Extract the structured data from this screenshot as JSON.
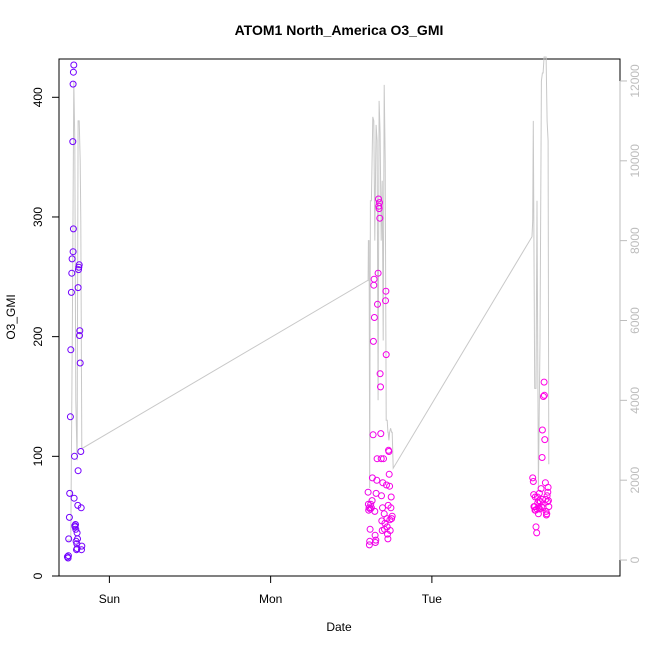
{
  "chart_data": {
    "type": "scatter",
    "title": "ATOM1 North_America O3_GMI",
    "xlabel": "Date",
    "ylabel": "O3_GMI",
    "x_axis": {
      "type": "date",
      "range_hours": [
        -15.0,
        152.0
      ],
      "ticks": [
        {
          "label": "Sun",
          "value": 0
        },
        {
          "label": "Mon",
          "value": 48
        },
        {
          "label": "Tue",
          "value": 96
        }
      ]
    },
    "y_axis": {
      "range": [
        0,
        432
      ],
      "ticks": [
        0,
        100,
        200,
        300,
        400
      ]
    },
    "y2_axis": {
      "description": "secondary axis for the altitude trace",
      "range": [
        -400,
        12550
      ],
      "ticks": [
        0,
        2000,
        4000,
        6000,
        8000,
        10000,
        12000
      ]
    },
    "colors": {
      "early": "#7000ff",
      "late": "#ff00e6",
      "altitude_line": "#c8c8c8"
    },
    "series": [
      {
        "type": "scatter",
        "points": [
          [
            -12.5,
            16
          ],
          [
            -12.3,
            15
          ],
          [
            -12.2,
            17
          ],
          [
            -12.1,
            31
          ],
          [
            -11.9,
            49
          ],
          [
            -11.8,
            69
          ],
          [
            -11.6,
            133
          ],
          [
            -11.5,
            189
          ],
          [
            -11.3,
            237
          ],
          [
            -11.2,
            253
          ],
          [
            -11.1,
            265
          ],
          [
            -10.8,
            271
          ],
          [
            -10.7,
            290
          ],
          [
            -10.9,
            363
          ],
          [
            -10.8,
            411
          ],
          [
            -10.7,
            421
          ],
          [
            -10.6,
            427
          ],
          [
            -10.5,
            65
          ],
          [
            -10.4,
            100
          ],
          [
            -10.3,
            42
          ],
          [
            -10.2,
            41
          ],
          [
            -10.1,
            43
          ],
          [
            -10.0,
            39
          ],
          [
            -9.9,
            29
          ],
          [
            -9.8,
            22
          ],
          [
            -9.7,
            27
          ],
          [
            -9.6,
            23
          ],
          [
            -9.6,
            36
          ],
          [
            -9.5,
            31
          ],
          [
            -9.4,
            59
          ],
          [
            -9.3,
            88
          ],
          [
            -9.3,
            241
          ],
          [
            -9.2,
            256
          ],
          [
            -9.1,
            258
          ],
          [
            -9.0,
            260
          ],
          [
            -8.9,
            201
          ],
          [
            -8.8,
            205
          ],
          [
            -8.7,
            178
          ],
          [
            -8.5,
            104
          ],
          [
            -8.4,
            57
          ],
          [
            -8.3,
            22
          ],
          [
            -8.2,
            25
          ],
          [
            77.0,
            70
          ],
          [
            77.1,
            60
          ],
          [
            77.2,
            55
          ],
          [
            77.3,
            57
          ],
          [
            77.4,
            26
          ],
          [
            77.5,
            29
          ],
          [
            77.6,
            39
          ],
          [
            77.7,
            56
          ],
          [
            77.8,
            60
          ],
          [
            78.0,
            57
          ],
          [
            78.2,
            63
          ],
          [
            78.3,
            82
          ],
          [
            78.5,
            118
          ],
          [
            78.6,
            196
          ],
          [
            78.7,
            243
          ],
          [
            78.8,
            248
          ],
          [
            78.9,
            216
          ],
          [
            79.0,
            54
          ],
          [
            79.1,
            34
          ],
          [
            79.2,
            28
          ],
          [
            79.3,
            30
          ],
          [
            79.4,
            69
          ],
          [
            79.6,
            80
          ],
          [
            79.7,
            98
          ],
          [
            79.8,
            227
          ],
          [
            80.0,
            253
          ],
          [
            80.1,
            315
          ],
          [
            80.2,
            309
          ],
          [
            80.3,
            307
          ],
          [
            80.4,
            312
          ],
          [
            80.5,
            299
          ],
          [
            80.6,
            169
          ],
          [
            80.7,
            158
          ],
          [
            80.8,
            119
          ],
          [
            80.9,
            98
          ],
          [
            81.0,
            67
          ],
          [
            81.1,
            46
          ],
          [
            81.2,
            38
          ],
          [
            81.3,
            57
          ],
          [
            81.4,
            78
          ],
          [
            81.6,
            98
          ],
          [
            81.8,
            52
          ],
          [
            81.9,
            39
          ],
          [
            82.0,
            44
          ],
          [
            82.2,
            230
          ],
          [
            82.3,
            238
          ],
          [
            82.4,
            185
          ],
          [
            82.5,
            76
          ],
          [
            82.6,
            48
          ],
          [
            82.7,
            41
          ],
          [
            82.8,
            35
          ],
          [
            82.9,
            31
          ],
          [
            83.0,
            59
          ],
          [
            83.1,
            105
          ],
          [
            83.2,
            104
          ],
          [
            83.3,
            85
          ],
          [
            83.4,
            75
          ],
          [
            83.5,
            47
          ],
          [
            83.6,
            38
          ],
          [
            83.8,
            57
          ],
          [
            83.9,
            66
          ],
          [
            84.0,
            48
          ],
          [
            84.2,
            50
          ],
          [
            126.0,
            82
          ],
          [
            126.2,
            79
          ],
          [
            126.3,
            68
          ],
          [
            126.4,
            58
          ],
          [
            126.6,
            58
          ],
          [
            126.7,
            55
          ],
          [
            126.8,
            66
          ],
          [
            126.9,
            55
          ],
          [
            127.0,
            41
          ],
          [
            127.2,
            36
          ],
          [
            127.3,
            56
          ],
          [
            127.4,
            66
          ],
          [
            127.5,
            61
          ],
          [
            127.7,
            52
          ],
          [
            127.8,
            57
          ],
          [
            127.9,
            63
          ],
          [
            128.0,
            69
          ],
          [
            128.1,
            56
          ],
          [
            128.3,
            62
          ],
          [
            128.5,
            73
          ],
          [
            128.6,
            58
          ],
          [
            128.8,
            99
          ],
          [
            128.9,
            122
          ],
          [
            129.0,
            64
          ],
          [
            129.1,
            57
          ],
          [
            129.2,
            150
          ],
          [
            129.4,
            162
          ],
          [
            129.5,
            151
          ],
          [
            129.6,
            114
          ],
          [
            129.8,
            78
          ],
          [
            129.9,
            64
          ],
          [
            130.0,
            54
          ],
          [
            130.1,
            51
          ],
          [
            130.2,
            52
          ],
          [
            130.3,
            67
          ],
          [
            130.4,
            62
          ],
          [
            130.5,
            70
          ],
          [
            130.6,
            74
          ],
          [
            130.7,
            63
          ],
          [
            130.8,
            58
          ]
        ]
      },
      {
        "type": "line",
        "axis": "y2",
        "points": [
          [
            -12.5,
            500
          ],
          [
            -11.5,
            500
          ],
          [
            -11.0,
            6000
          ],
          [
            -10.6,
            12000
          ],
          [
            -10.3,
            10500
          ],
          [
            -10.0,
            4000
          ],
          [
            -9.6,
            2500
          ],
          [
            -9.3,
            11000
          ],
          [
            -9.0,
            11000
          ],
          [
            -8.7,
            10000
          ],
          [
            -8.5,
            8500
          ],
          [
            -8.2,
            2800
          ],
          [
            -8.0,
            2800
          ],
          [
            76.8,
            7000
          ],
          [
            77.0,
            7000
          ],
          [
            77.1,
            8000
          ],
          [
            77.3,
            8000
          ],
          [
            77.5,
            1800
          ],
          [
            77.7,
            9000
          ],
          [
            78.0,
            9000
          ],
          [
            78.4,
            11100
          ],
          [
            78.7,
            11000
          ],
          [
            79.0,
            8000
          ],
          [
            79.4,
            10900
          ],
          [
            79.7,
            10500
          ],
          [
            80.0,
            4000
          ],
          [
            80.3,
            11500
          ],
          [
            80.6,
            10700
          ],
          [
            80.9,
            8000
          ],
          [
            81.2,
            9500
          ],
          [
            81.5,
            5500
          ],
          [
            81.8,
            11900
          ],
          [
            82.1,
            10000
          ],
          [
            82.4,
            3500
          ],
          [
            82.7,
            3500
          ],
          [
            82.9,
            3200
          ],
          [
            83.0,
            3200
          ],
          [
            83.2,
            3000
          ],
          [
            83.4,
            3200
          ],
          [
            83.7,
            3300
          ],
          [
            84.0,
            3200
          ],
          [
            84.2,
            3200
          ],
          [
            84.5,
            2300
          ],
          [
            125.8,
            8100
          ],
          [
            126.0,
            8500
          ],
          [
            126.2,
            11000
          ],
          [
            126.6,
            4300
          ],
          [
            127.0,
            4300
          ],
          [
            127.3,
            9000
          ],
          [
            127.7,
            1800
          ],
          [
            128.2,
            5500
          ],
          [
            128.6,
            12000
          ],
          [
            128.9,
            12200
          ],
          [
            129.1,
            12200
          ],
          [
            129.4,
            12600
          ],
          [
            129.7,
            12600
          ],
          [
            130.0,
            12600
          ],
          [
            130.3,
            11000
          ],
          [
            130.6,
            10500
          ],
          [
            130.8,
            2400
          ]
        ]
      }
    ]
  }
}
